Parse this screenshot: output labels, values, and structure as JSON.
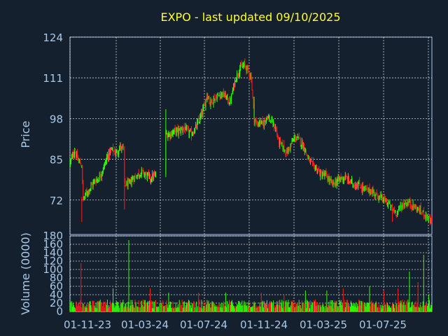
{
  "chart_data": [
    {
      "type": "candlestick",
      "title": "EXPO - last updated 09/10/2025",
      "ylabel": "Price",
      "ylim": [
        61,
        124
      ],
      "yticks": [
        124,
        111,
        98,
        85,
        72
      ],
      "x_ticks": [
        "01-11-23",
        "01-03-24",
        "01-07-24",
        "01-11-24",
        "01-03-25",
        "01-07-25"
      ],
      "grid": true,
      "colors": {
        "up": "#33ff00",
        "down": "#ff1a1a",
        "grid": "#ffffff",
        "background": "#14202e",
        "axis": "#aac8e8",
        "title": "#ffff33"
      },
      "price_path": [
        [
          0,
          84
        ],
        [
          6,
          88
        ],
        [
          10,
          85
        ],
        [
          16,
          83
        ],
        [
          18,
          72
        ],
        [
          22,
          74
        ],
        [
          28,
          76
        ],
        [
          34,
          78
        ],
        [
          40,
          79
        ],
        [
          46,
          82
        ],
        [
          52,
          86
        ],
        [
          58,
          88
        ],
        [
          64,
          87
        ],
        [
          70,
          89
        ],
        [
          74,
          88
        ],
        [
          76,
          77
        ],
        [
          82,
          77
        ],
        [
          88,
          79
        ],
        [
          94,
          80
        ],
        [
          100,
          81
        ],
        [
          106,
          80
        ],
        [
          112,
          79
        ],
        [
          120,
          80
        ],
        [
          134,
          93
        ],
        [
          140,
          93
        ],
        [
          146,
          94
        ],
        [
          152,
          94
        ],
        [
          158,
          95
        ],
        [
          164,
          94
        ],
        [
          170,
          93
        ],
        [
          176,
          95
        ],
        [
          182,
          98
        ],
        [
          188,
          102
        ],
        [
          192,
          106
        ],
        [
          196,
          103
        ],
        [
          200,
          104
        ],
        [
          206,
          105
        ],
        [
          212,
          106
        ],
        [
          218,
          105
        ],
        [
          224,
          103
        ],
        [
          228,
          107
        ],
        [
          232,
          111
        ],
        [
          238,
          114
        ],
        [
          244,
          115
        ],
        [
          248,
          114
        ],
        [
          254,
          111
        ],
        [
          258,
          98
        ],
        [
          262,
          96
        ],
        [
          266,
          97
        ],
        [
          270,
          96
        ],
        [
          276,
          99
        ],
        [
          282,
          97
        ],
        [
          288,
          95
        ],
        [
          292,
          91
        ],
        [
          298,
          89
        ],
        [
          304,
          87
        ],
        [
          310,
          90
        ],
        [
          316,
          92
        ],
        [
          322,
          91
        ],
        [
          328,
          89
        ],
        [
          334,
          85
        ],
        [
          340,
          83
        ],
        [
          346,
          82
        ],
        [
          352,
          80
        ],
        [
          358,
          80
        ],
        [
          364,
          78
        ],
        [
          368,
          77
        ],
        [
          374,
          78
        ],
        [
          380,
          79
        ],
        [
          386,
          79
        ],
        [
          392,
          78
        ],
        [
          398,
          77
        ],
        [
          404,
          77
        ],
        [
          410,
          76
        ],
        [
          416,
          75
        ],
        [
          422,
          75
        ],
        [
          428,
          74
        ],
        [
          434,
          73
        ],
        [
          440,
          72
        ],
        [
          446,
          71
        ],
        [
          452,
          69
        ],
        [
          458,
          68
        ],
        [
          464,
          70
        ],
        [
          470,
          71
        ],
        [
          476,
          71
        ],
        [
          482,
          70
        ],
        [
          488,
          69
        ],
        [
          494,
          68
        ],
        [
          500,
          67
        ],
        [
          506,
          65
        ]
      ],
      "gaps": [
        [
          74,
          76
        ],
        [
          120,
          134
        ]
      ]
    },
    {
      "type": "bar",
      "ylabel": "Volume (0000)",
      "ylim": [
        0,
        180
      ],
      "yticks": [
        180,
        160,
        140,
        120,
        100,
        80,
        60,
        40,
        20,
        0
      ],
      "baseline_volume": 15,
      "spikes": [
        [
          15,
          115
        ],
        [
          60,
          55
        ],
        [
          82,
          170
        ],
        [
          112,
          55
        ],
        [
          138,
          45
        ],
        [
          180,
          45
        ],
        [
          218,
          45
        ],
        [
          268,
          45
        ],
        [
          300,
          40
        ],
        [
          330,
          50
        ],
        [
          360,
          50
        ],
        [
          383,
          55
        ],
        [
          420,
          60
        ],
        [
          440,
          50
        ],
        [
          460,
          55
        ],
        [
          476,
          95
        ],
        [
          488,
          70
        ],
        [
          496,
          135
        ],
        [
          503,
          40
        ]
      ]
    }
  ]
}
